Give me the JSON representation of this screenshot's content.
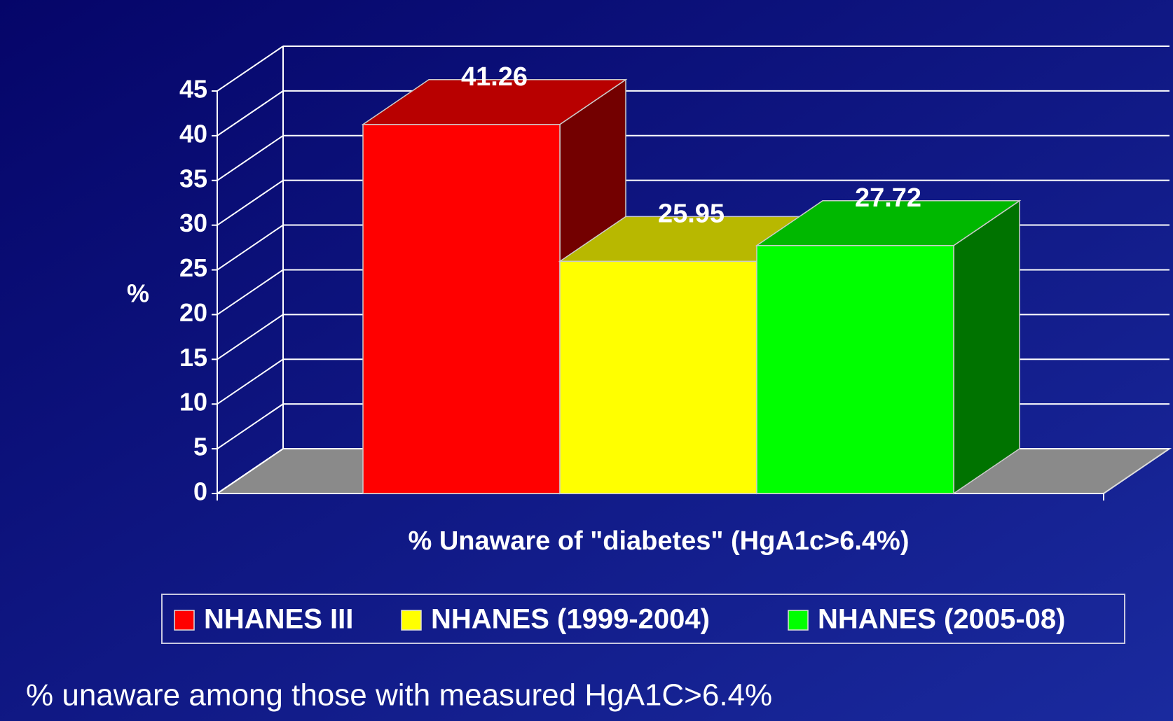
{
  "chart_data": {
    "type": "bar3d",
    "ylabel": "%",
    "categories": [
      "% Unaware of \"diabetes\" (HgA1c>6.4%)"
    ],
    "series": [
      {
        "name": "NHANES III",
        "color": "#ff0000",
        "values": [
          41.26
        ]
      },
      {
        "name": "NHANES (1999-2004)",
        "color": "#ffff00",
        "values": [
          25.95
        ]
      },
      {
        "name": "NHANES (2005-08)",
        "color": "#00ff00",
        "values": [
          27.72
        ]
      }
    ],
    "ylim": [
      0,
      45
    ],
    "yticks": [
      0,
      5,
      10,
      15,
      20,
      25,
      30,
      35,
      40,
      45
    ],
    "grid": true,
    "legend": "bottom",
    "footnote": "% unaware among those with measured HgA1C>6.4%"
  }
}
